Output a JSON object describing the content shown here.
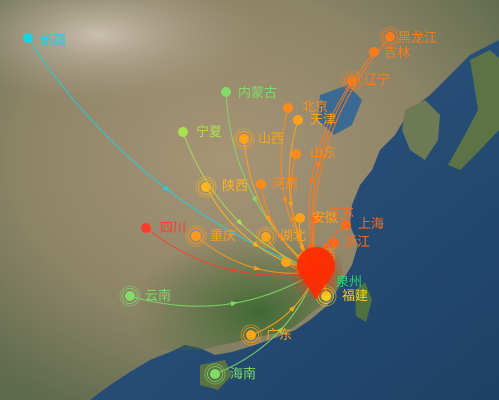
{
  "map": {
    "hub": {
      "name": "泉州",
      "color": "#ff2a00",
      "label_color": "#2fd36a"
    },
    "cities": [
      {
        "name": "新疆",
        "color": "#19d3e6"
      },
      {
        "name": "黑龙江",
        "color": "#ff7a1a"
      },
      {
        "name": "吉林",
        "color": "#ff7a1a"
      },
      {
        "name": "辽宁",
        "color": "#ff7a1a"
      },
      {
        "name": "内蒙古",
        "color": "#7fdc66"
      },
      {
        "name": "北京",
        "color": "#ff8c1a"
      },
      {
        "name": "天津",
        "color": "#ffa31a"
      },
      {
        "name": "宁夏",
        "color": "#a9e24d"
      },
      {
        "name": "山西",
        "color": "#ffa31a"
      },
      {
        "name": "山东",
        "color": "#ff8c1a"
      },
      {
        "name": "陕西",
        "color": "#ffb61a"
      },
      {
        "name": "河南",
        "color": "#ff8c1a"
      },
      {
        "name": "安徽",
        "color": "#ffa31a"
      },
      {
        "name": "江苏",
        "color": "#ff6a1a"
      },
      {
        "name": "上海",
        "color": "#ff6a1a"
      },
      {
        "name": "四川",
        "color": "#ff3b2a"
      },
      {
        "name": "重庆",
        "color": "#ff9a1a"
      },
      {
        "name": "湖北",
        "color": "#ffa31a"
      },
      {
        "name": "浙江",
        "color": "#ff6a1a"
      },
      {
        "name": "湖南",
        "color": "#ffa31a"
      },
      {
        "name": "江西",
        "color": "#ff8c1a"
      },
      {
        "name": "福建",
        "color": "#ffd21a"
      },
      {
        "name": "云南",
        "color": "#7fdc66"
      },
      {
        "name": "广东",
        "color": "#ffa31a"
      },
      {
        "name": "海南",
        "color": "#7fdc66"
      }
    ]
  }
}
